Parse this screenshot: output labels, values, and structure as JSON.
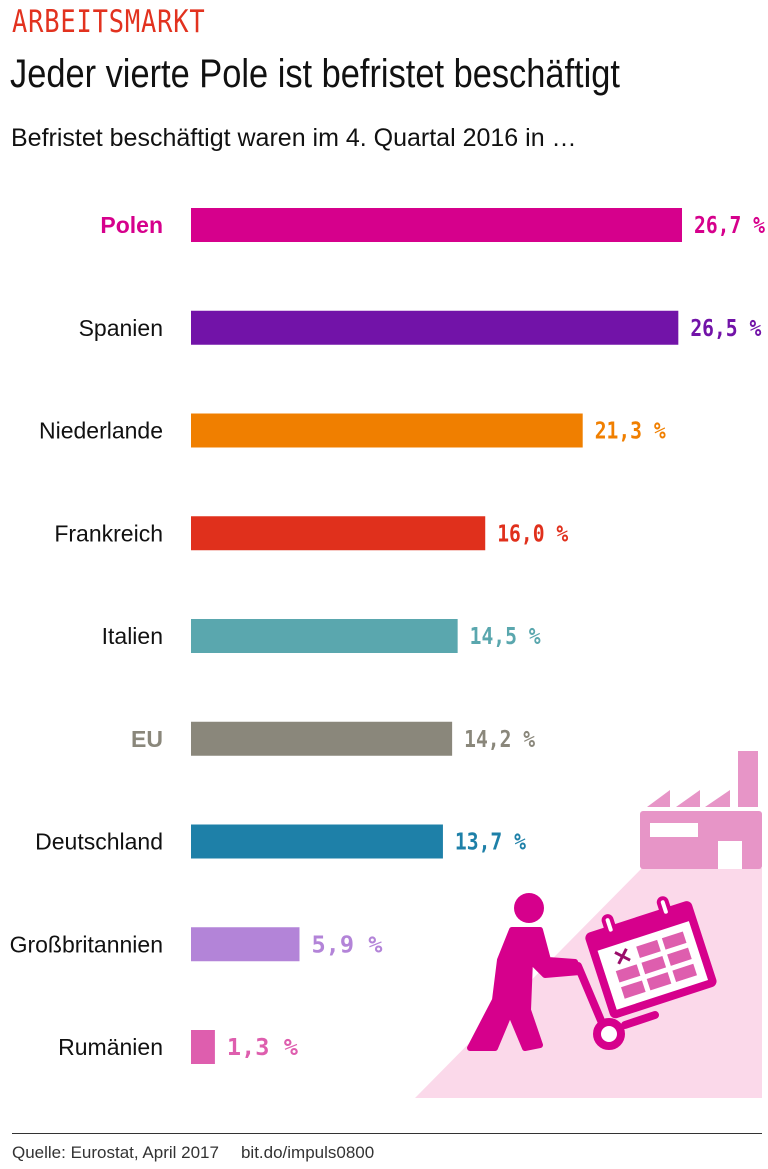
{
  "kicker": "ARBEITSMARKT",
  "title": "Jeder vierte Pole ist befristet beschäftigt",
  "subtitle": "Befristet beschäftigt waren im 4. Quartal 2016 in …",
  "footer": {
    "source": "Quelle: Eurostat, April 2017",
    "link": "bit.do/impuls0800"
  },
  "chart_data": {
    "type": "bar",
    "orientation": "horizontal",
    "unit": "%",
    "categories": [
      "Polen",
      "Spanien",
      "Niederlande",
      "Frankreich",
      "Italien",
      "EU",
      "Deutschland",
      "Großbritannien",
      "Rumänien"
    ],
    "values": [
      26.7,
      26.5,
      21.3,
      16.0,
      14.5,
      14.2,
      13.7,
      5.9,
      1.3
    ],
    "value_labels": [
      "26,7 %",
      "26,5 %",
      "21,3 %",
      "16,0 %",
      "14,5 %",
      "14,2 %",
      "13,7 %",
      "5,9 %",
      "1,3 %"
    ],
    "colors": [
      "#d6008c",
      "#7213a8",
      "#f07f00",
      "#e0301c",
      "#5aa7ae",
      "#8a877b",
      "#1e80a8",
      "#b384d8",
      "#de5eae"
    ],
    "label_colors": [
      "#d6008c",
      "#111111",
      "#111111",
      "#111111",
      "#111111",
      "#8a877b",
      "#111111",
      "#111111",
      "#111111"
    ],
    "bold_labels": [
      "Polen",
      "EU"
    ],
    "grid": false,
    "legend": "none"
  },
  "illustration": {
    "icons": [
      "factory-icon",
      "worker-pushing-hand-truck-icon",
      "calendar-icon"
    ],
    "colors": {
      "dark": "#d6008c",
      "medium": "#e795c7",
      "light": "#fbd9ea"
    }
  }
}
